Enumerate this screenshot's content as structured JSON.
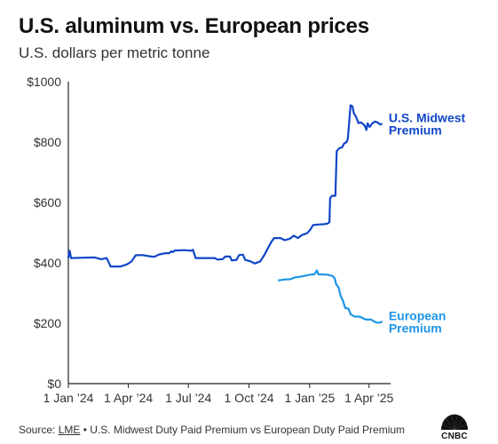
{
  "header": {
    "title": "U.S. aluminum vs. European prices",
    "subtitle": "U.S. dollars per metric tonne"
  },
  "footer": {
    "source_prefix": "Source: ",
    "source_link": "LME",
    "source_rest": " • U.S. Midwest Duty Paid Premium vs European Duty Paid Premium"
  },
  "logo": {
    "text": "CNBC",
    "icon": "peacock-logo-icon"
  },
  "colors": {
    "us_midwest": "#1046c9",
    "european": "#1e95e8",
    "axis": "#222222"
  },
  "chart_data": {
    "type": "line",
    "title": "U.S. aluminum vs. European prices",
    "subtitle": "U.S. dollars per metric tonne",
    "xlabel": "",
    "ylabel": "",
    "ylim": [
      0,
      1000
    ],
    "xlim": [
      "2024-01-01",
      "2025-05-01"
    ],
    "grid": false,
    "legend": "inline labels at right end of each line",
    "y_ticks": [
      0,
      200,
      400,
      600,
      800,
      1000
    ],
    "y_tick_labels": [
      "$0",
      "$200",
      "$400",
      "$600",
      "$800",
      "$1000"
    ],
    "x_ticks": [
      "2024-01-01",
      "2024-04-01",
      "2024-07-01",
      "2024-10-01",
      "2025-01-01",
      "2025-04-01"
    ],
    "x_tick_labels": [
      "1 Jan ’24",
      "1 Apr ’24",
      "1 Jul ’24",
      "1 Oct ’24",
      "1 Jan ’25",
      "1 Apr ’25"
    ],
    "series": [
      {
        "name": "U.S. Midwest Premium",
        "label_lines": [
          "U.S. Midwest",
          "Premium"
        ],
        "color": "#1046c9",
        "points": [
          [
            "2024-01-01",
            418
          ],
          [
            "2024-01-03",
            440
          ],
          [
            "2024-01-05",
            416
          ],
          [
            "2024-01-25",
            417
          ],
          [
            "2024-02-10",
            418
          ],
          [
            "2024-02-20",
            412
          ],
          [
            "2024-02-28",
            416
          ],
          [
            "2024-03-02",
            403
          ],
          [
            "2024-03-05",
            388
          ],
          [
            "2024-03-20",
            388
          ],
          [
            "2024-03-30",
            395
          ],
          [
            "2024-04-06",
            405
          ],
          [
            "2024-04-12",
            425
          ],
          [
            "2024-04-22",
            426
          ],
          [
            "2024-05-02",
            422
          ],
          [
            "2024-05-10",
            420
          ],
          [
            "2024-05-18",
            428
          ],
          [
            "2024-05-28",
            432
          ],
          [
            "2024-06-02",
            432
          ],
          [
            "2024-06-05",
            438
          ],
          [
            "2024-06-08",
            436
          ],
          [
            "2024-06-10",
            441
          ],
          [
            "2024-06-25",
            442
          ],
          [
            "2024-07-05",
            440
          ],
          [
            "2024-07-08",
            443
          ],
          [
            "2024-07-12",
            416
          ],
          [
            "2024-07-28",
            416
          ],
          [
            "2024-08-10",
            416
          ],
          [
            "2024-08-14",
            411
          ],
          [
            "2024-08-22",
            412
          ],
          [
            "2024-08-26",
            421
          ],
          [
            "2024-09-02",
            421
          ],
          [
            "2024-09-05",
            408
          ],
          [
            "2024-09-12",
            410
          ],
          [
            "2024-09-16",
            426
          ],
          [
            "2024-09-22",
            427
          ],
          [
            "2024-09-25",
            410
          ],
          [
            "2024-10-03",
            405
          ],
          [
            "2024-10-10",
            398
          ],
          [
            "2024-10-18",
            405
          ],
          [
            "2024-10-24",
            425
          ],
          [
            "2024-10-28",
            442
          ],
          [
            "2024-11-04",
            470
          ],
          [
            "2024-11-08",
            482
          ],
          [
            "2024-11-18",
            482
          ],
          [
            "2024-11-24",
            475
          ],
          [
            "2024-12-02",
            480
          ],
          [
            "2024-12-08",
            490
          ],
          [
            "2024-12-14",
            482
          ],
          [
            "2024-12-20",
            492
          ],
          [
            "2024-12-28",
            498
          ],
          [
            "2025-01-02",
            510
          ],
          [
            "2025-01-06",
            525
          ],
          [
            "2025-01-14",
            527
          ],
          [
            "2025-01-22",
            528
          ],
          [
            "2025-01-28",
            530
          ],
          [
            "2025-01-31",
            535
          ],
          [
            "2025-02-01",
            615
          ],
          [
            "2025-02-04",
            622
          ],
          [
            "2025-02-09",
            622
          ],
          [
            "2025-02-11",
            770
          ],
          [
            "2025-02-15",
            780
          ],
          [
            "2025-02-19",
            782
          ],
          [
            "2025-02-22",
            795
          ],
          [
            "2025-02-26",
            800
          ],
          [
            "2025-02-28",
            812
          ],
          [
            "2025-03-04",
            922
          ],
          [
            "2025-03-07",
            918
          ],
          [
            "2025-03-09",
            895
          ],
          [
            "2025-03-12",
            885
          ],
          [
            "2025-03-16",
            863
          ],
          [
            "2025-03-20",
            865
          ],
          [
            "2025-03-24",
            858
          ],
          [
            "2025-03-26",
            852
          ],
          [
            "2025-03-28",
            840
          ],
          [
            "2025-03-30",
            862
          ],
          [
            "2025-04-02",
            850
          ],
          [
            "2025-04-06",
            862
          ],
          [
            "2025-04-10",
            868
          ],
          [
            "2025-04-14",
            865
          ],
          [
            "2025-04-18",
            858
          ],
          [
            "2025-04-20",
            860
          ]
        ]
      },
      {
        "name": "European Premium",
        "label_lines": [
          "European",
          "Premium"
        ],
        "color": "#1e95e8",
        "points": [
          [
            "2024-11-15",
            342
          ],
          [
            "2024-11-25",
            345
          ],
          [
            "2024-12-03",
            346
          ],
          [
            "2024-12-10",
            352
          ],
          [
            "2024-12-20",
            355
          ],
          [
            "2024-12-26",
            358
          ],
          [
            "2025-01-02",
            361
          ],
          [
            "2025-01-08",
            362
          ],
          [
            "2025-01-12",
            375
          ],
          [
            "2025-01-14",
            362
          ],
          [
            "2025-01-28",
            361
          ],
          [
            "2025-02-05",
            356
          ],
          [
            "2025-02-08",
            348
          ],
          [
            "2025-02-10",
            330
          ],
          [
            "2025-02-14",
            318
          ],
          [
            "2025-02-17",
            290
          ],
          [
            "2025-02-20",
            277
          ],
          [
            "2025-02-24",
            250
          ],
          [
            "2025-03-01",
            248
          ],
          [
            "2025-03-04",
            230
          ],
          [
            "2025-03-10",
            222
          ],
          [
            "2025-03-16",
            222
          ],
          [
            "2025-03-20",
            220
          ],
          [
            "2025-03-24",
            215
          ],
          [
            "2025-03-28",
            212
          ],
          [
            "2025-04-04",
            212
          ],
          [
            "2025-04-08",
            207
          ],
          [
            "2025-04-12",
            202
          ],
          [
            "2025-04-18",
            202
          ],
          [
            "2025-04-20",
            205
          ]
        ]
      }
    ]
  }
}
